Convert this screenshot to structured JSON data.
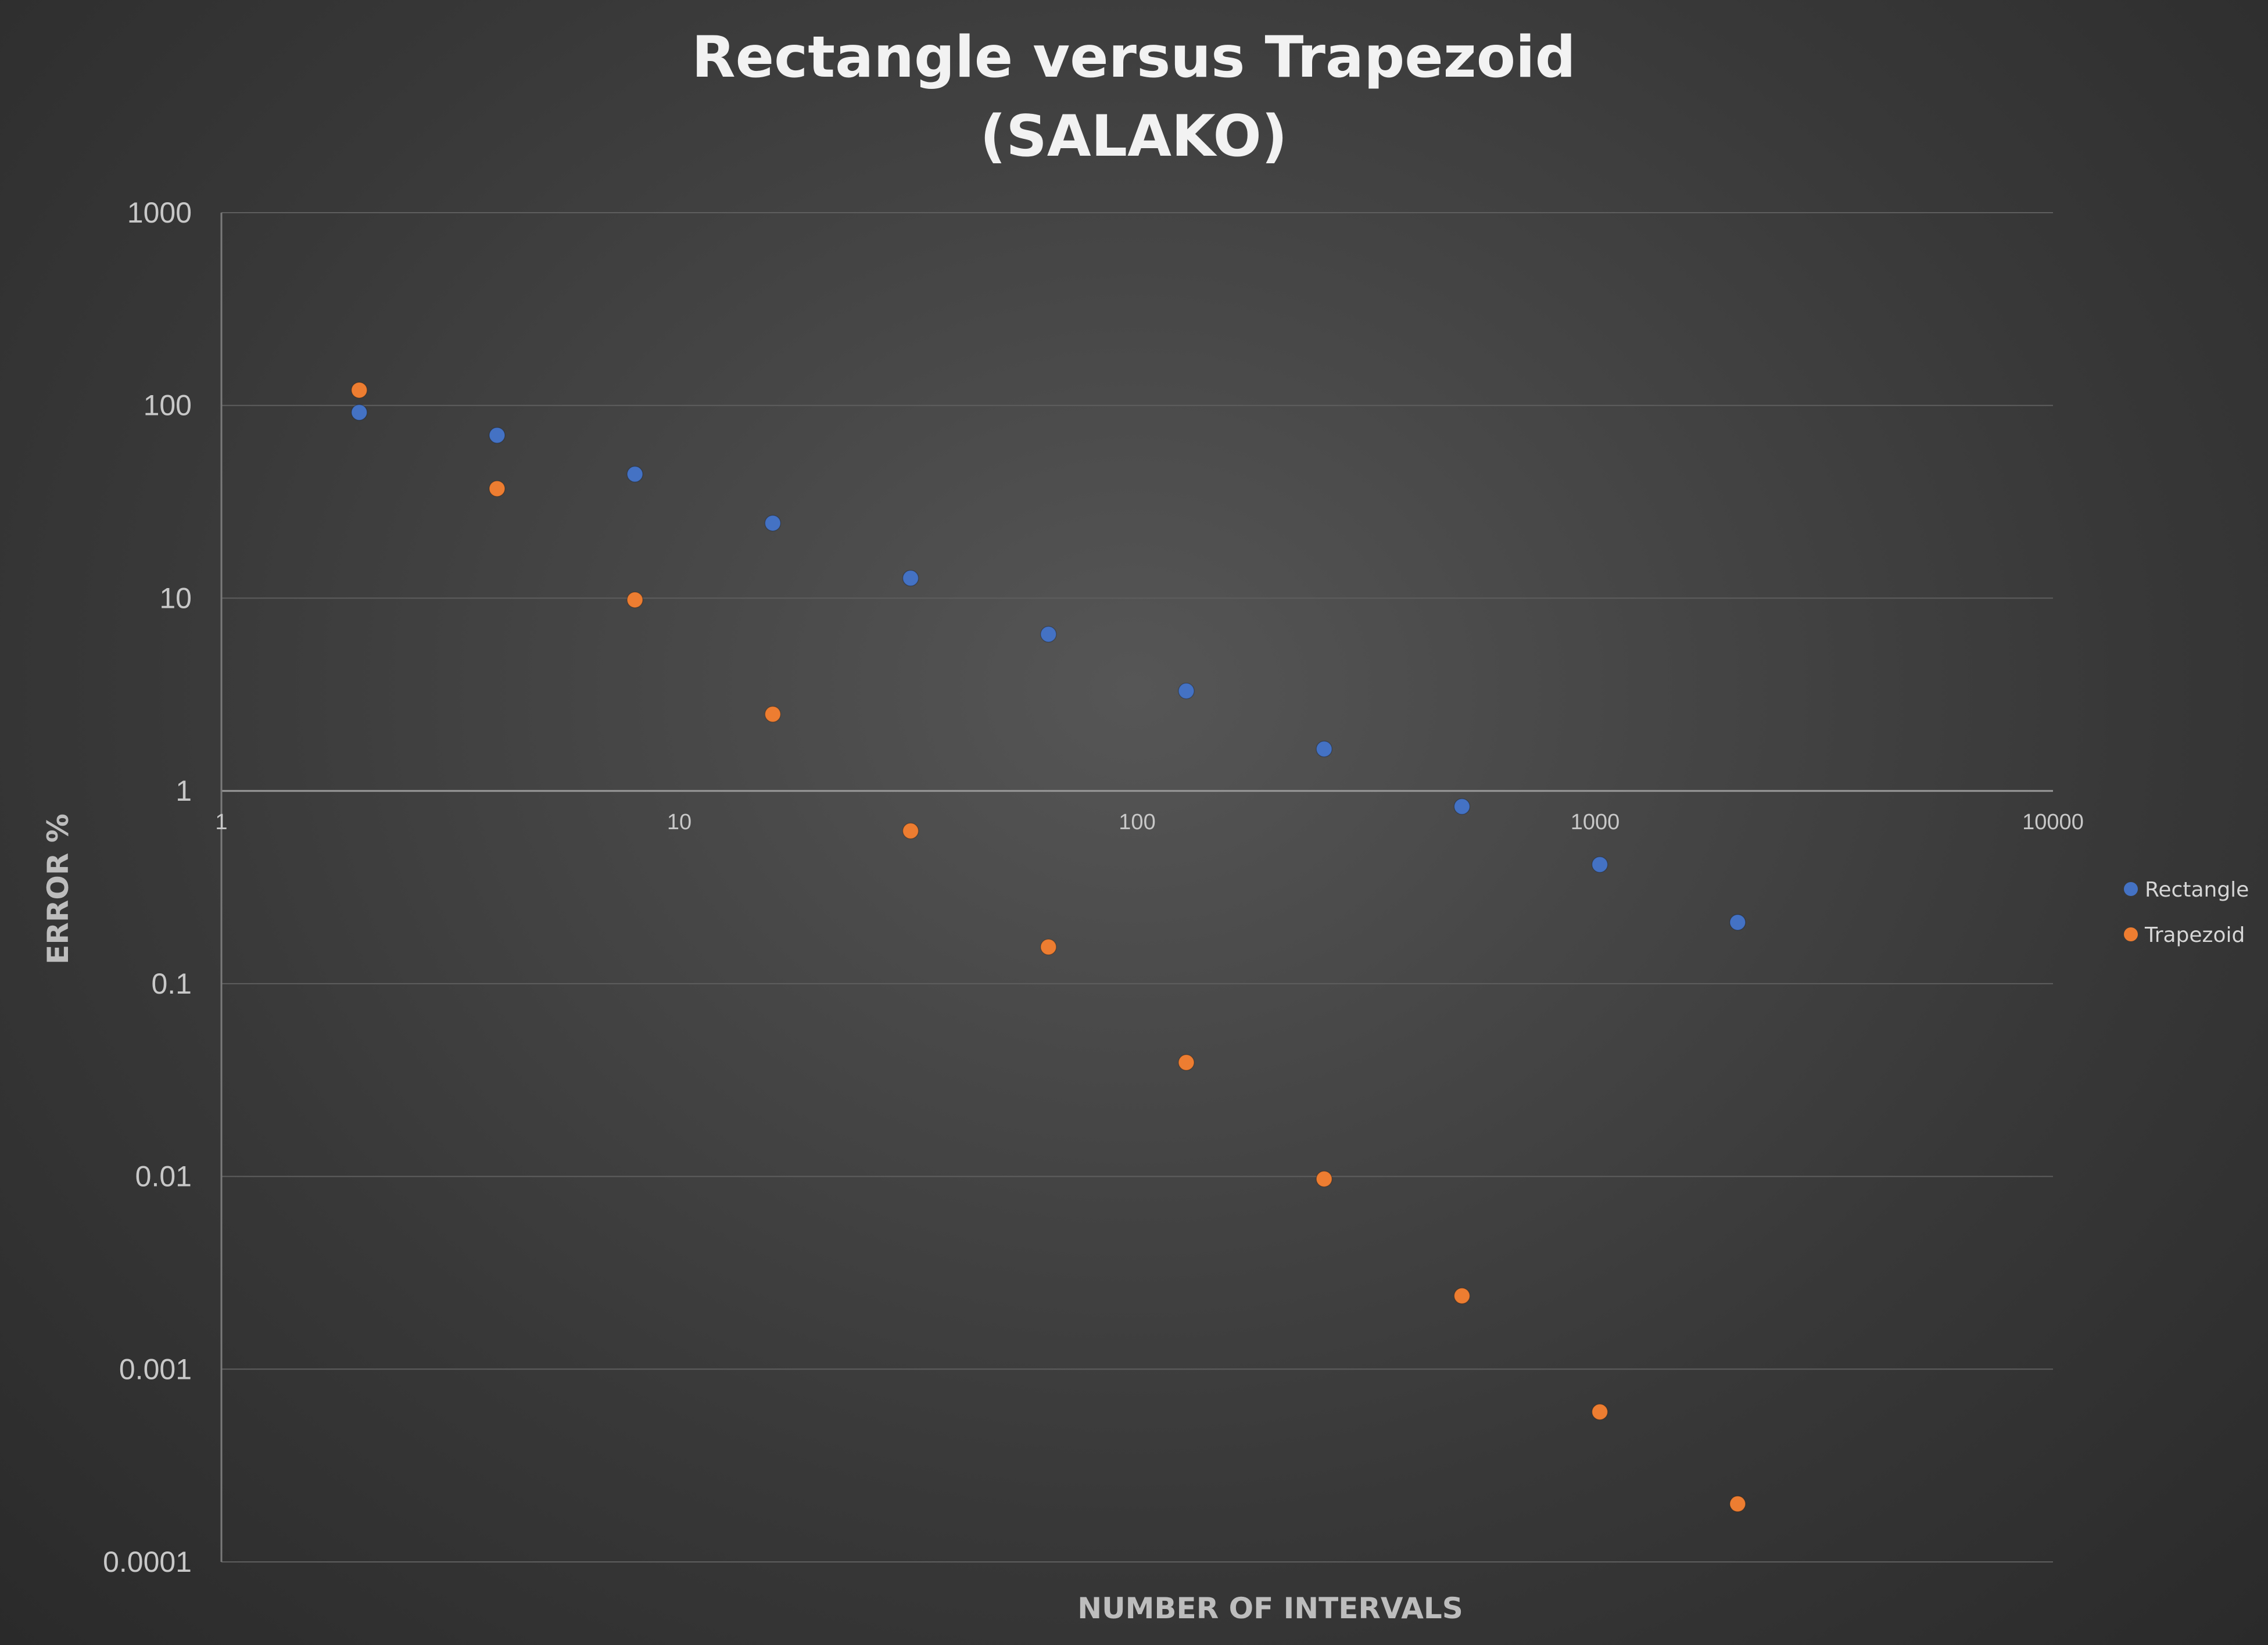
{
  "chart_data": {
    "type": "scatter",
    "title": [
      "Rectangle versus Trapezoid",
      "(SALAKO)"
    ],
    "xlabel": "NUMBER OF INTERVALS",
    "ylabel": "ERROR %",
    "x_scale": "log",
    "y_scale": "log",
    "xlim": [
      1,
      10000
    ],
    "ylim": [
      0.0001,
      1000
    ],
    "x_ticks": [
      "1",
      "10",
      "100",
      "1000",
      "10000"
    ],
    "y_ticks": [
      "1000",
      "100",
      "10",
      "1",
      "0.1",
      "0.01",
      "0.001",
      "0.0001"
    ],
    "grid": "horizontal",
    "legend_position": "right",
    "series": [
      {
        "name": "Rectangle",
        "color": "#4472c4",
        "x": [
          2,
          4,
          8,
          16,
          32,
          64,
          128,
          256,
          512,
          1024,
          2048
        ],
        "y": [
          92,
          70,
          44,
          24.5,
          12.7,
          6.5,
          3.3,
          1.65,
          0.83,
          0.415,
          0.208
        ]
      },
      {
        "name": "Trapezoid",
        "color": "#ed7d31",
        "x": [
          2,
          4,
          8,
          16,
          32,
          64,
          128,
          256,
          512,
          1024,
          2048
        ],
        "y": [
          120,
          37,
          9.8,
          2.5,
          0.62,
          0.155,
          0.039,
          0.0097,
          0.0024,
          0.0006,
          0.0002
        ]
      }
    ]
  }
}
